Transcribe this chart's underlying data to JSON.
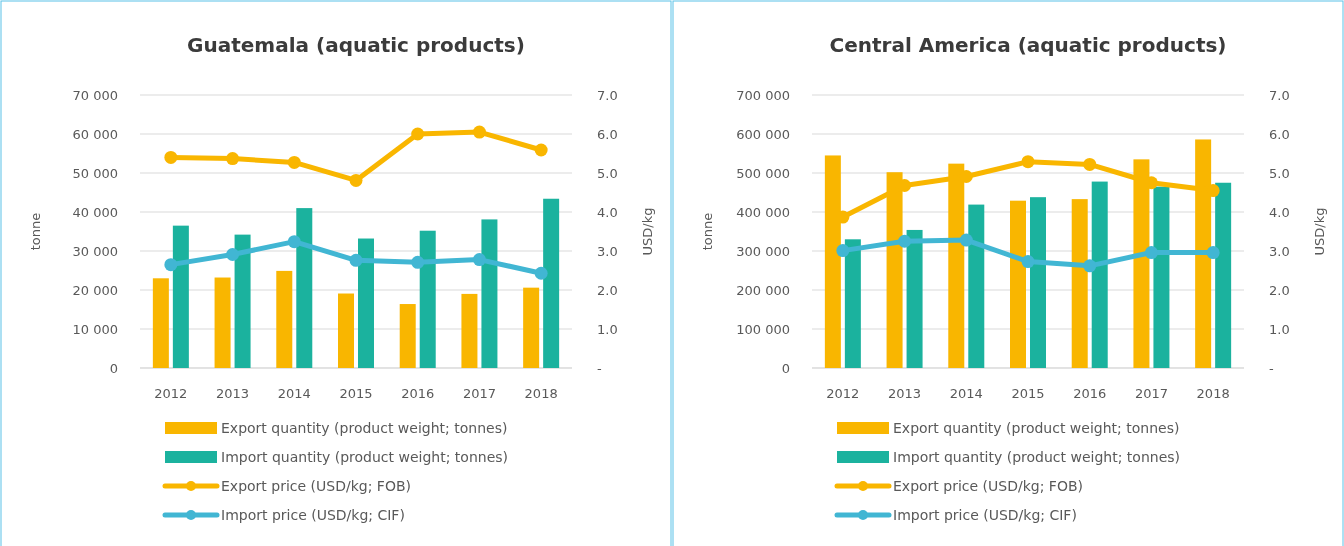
{
  "chart_data": [
    {
      "type": "bar",
      "title": "Guatemala (aquatic products)",
      "ylabel": "tonne",
      "y2label": "USD/kg",
      "categories": [
        "2012",
        "2013",
        "2014",
        "2015",
        "2016",
        "2017",
        "2018"
      ],
      "series": [
        {
          "name": "Export quantity (product weight; tonnes)",
          "color": "#f9b600",
          "values": [
            23000,
            23200,
            24900,
            19100,
            16400,
            19000,
            20600
          ]
        },
        {
          "name": "Import quantity (product weight; tonnes)",
          "color": "#1bb29e",
          "values": [
            36500,
            34200,
            41000,
            33200,
            35200,
            38100,
            43400
          ]
        },
        {
          "name": "Export price (USD/kg; FOB)",
          "type": "line",
          "axis": "y2",
          "marker": "circle",
          "color": "#f9b600",
          "values": [
            5.4,
            5.37,
            5.27,
            4.81,
            6.0,
            6.05,
            5.59
          ]
        },
        {
          "name": "Import price (USD/kg; CIF)",
          "type": "line",
          "axis": "y2",
          "marker": "circle",
          "color": "#41b6d3",
          "values": [
            2.65,
            2.91,
            3.24,
            2.76,
            2.71,
            2.78,
            2.43
          ]
        }
      ],
      "ylim": [
        0,
        70000
      ],
      "yticks": [
        0,
        {
          "value": 10000,
          "label": "10 000"
        },
        {
          "value": 20000,
          "label": "20 000"
        },
        {
          "value": 30000,
          "label": "30 000"
        },
        {
          "value": 40000,
          "label": "40 000"
        },
        {
          "value": 50000,
          "label": "50 000"
        },
        {
          "value": 60000,
          "label": "60 000"
        },
        {
          "value": 70000,
          "label": "70 000"
        }
      ],
      "y2lim": [
        0,
        7
      ],
      "y2ticks": [
        {
          "value": 0,
          "label": "-"
        },
        {
          "value": 1,
          "label": "1.0"
        },
        {
          "value": 2,
          "label": "2.0"
        },
        {
          "value": 3,
          "label": "3.0"
        },
        {
          "value": 4,
          "label": "4.0"
        },
        {
          "value": 5,
          "label": "5.0"
        },
        {
          "value": 6,
          "label": "6.0"
        },
        {
          "value": 7,
          "label": "7.0"
        }
      ],
      "grid": "y",
      "legend": "bottom"
    },
    {
      "type": "bar",
      "title": "Central America (aquatic products)",
      "ylabel": "tonne",
      "y2label": "USD/kg",
      "categories": [
        "2012",
        "2013",
        "2014",
        "2015",
        "2016",
        "2017",
        "2018"
      ],
      "series": [
        {
          "name": "Export quantity (product weight; tonnes)",
          "color": "#f9b600",
          "values": [
            545000,
            502000,
            524000,
            429000,
            433000,
            535000,
            586000
          ]
        },
        {
          "name": "Import quantity (product weight; tonnes)",
          "color": "#1bb29e",
          "values": [
            330000,
            354000,
            419000,
            438000,
            478000,
            465000,
            475000
          ]
        },
        {
          "name": "Export price (USD/kg; FOB)",
          "type": "line",
          "axis": "y2",
          "marker": "circle",
          "color": "#f9b600",
          "values": [
            3.87,
            4.68,
            4.91,
            5.29,
            5.22,
            4.75,
            4.55
          ]
        },
        {
          "name": "Import price (USD/kg; CIF)",
          "type": "line",
          "axis": "y2",
          "marker": "circle",
          "color": "#41b6d3",
          "values": [
            3.01,
            3.25,
            3.28,
            2.73,
            2.62,
            2.96,
            2.96
          ]
        }
      ],
      "ylim": [
        0,
        700000
      ],
      "yticks": [
        0,
        {
          "value": 100000,
          "label": "100 000"
        },
        {
          "value": 200000,
          "label": "200 000"
        },
        {
          "value": 300000,
          "label": "300 000"
        },
        {
          "value": 400000,
          "label": "400 000"
        },
        {
          "value": 500000,
          "label": "500 000"
        },
        {
          "value": 600000,
          "label": "600 000"
        },
        {
          "value": 700000,
          "label": "700 000"
        }
      ],
      "y2lim": [
        0,
        7
      ],
      "y2ticks": [
        {
          "value": 0,
          "label": "-"
        },
        {
          "value": 1,
          "label": "1.0"
        },
        {
          "value": 2,
          "label": "2.0"
        },
        {
          "value": 3,
          "label": "3.0"
        },
        {
          "value": 4,
          "label": "4.0"
        },
        {
          "value": 5,
          "label": "5.0"
        },
        {
          "value": 6,
          "label": "6.0"
        },
        {
          "value": 7,
          "label": "7.0"
        }
      ],
      "grid": "y",
      "legend": "bottom"
    }
  ]
}
